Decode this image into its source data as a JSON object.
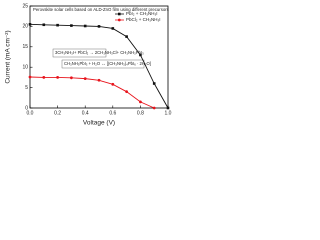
{
  "chart_data": {
    "type": "line",
    "title": "Perovskite solar cells based on ALD-ZnO film using different precursors",
    "x_label": "Voltage (V)",
    "y_label": "Current (mA cm⁻²)",
    "annotations": [
      "3CH₃NH₃I+ PbCl₂ → 2CH₃NH₃Cl+ CH₃NH₃PbI₃",
      "CH₃NH₃PbI₃ + H₂O ↔ [(CH₃NH₃)₄PbI₆ · 2H₂O]"
    ],
    "x": [
      0,
      0.1,
      0.2,
      0.3,
      0.4,
      0.5,
      0.6,
      0.7,
      0.8,
      0.9,
      1.0
    ],
    "series": [
      {
        "name": "PbI₂ + CH₃NH₃I",
        "color": "#111111",
        "marker": "square",
        "values": [
          20.5,
          20.4,
          20.3,
          20.2,
          20.1,
          20.0,
          19.5,
          17.5,
          13,
          6,
          0
        ]
      },
      {
        "name": "PbCl₂ + CH₃NH₃I",
        "color": "#e8141c",
        "marker": "circle",
        "values": [
          7.6,
          7.5,
          7.5,
          7.4,
          7.2,
          6.8,
          5.8,
          4,
          1.5,
          0,
          null
        ]
      }
    ],
    "xlim": [
      0,
      1.0
    ],
    "xticks": [
      {
        "value": 0,
        "label": "0.0"
      },
      {
        "value": 0.2,
        "label": "0.2"
      },
      {
        "value": 0.4,
        "label": "0.4"
      },
      {
        "value": 0.6,
        "label": "0.6"
      },
      {
        "value": 0.8,
        "label": "0.8"
      },
      {
        "value": 1.0,
        "label": "1.0"
      }
    ],
    "ylim": [
      0,
      25
    ],
    "yticks": [
      0,
      5,
      10,
      15,
      20,
      25
    ],
    "legend": "upper right"
  }
}
